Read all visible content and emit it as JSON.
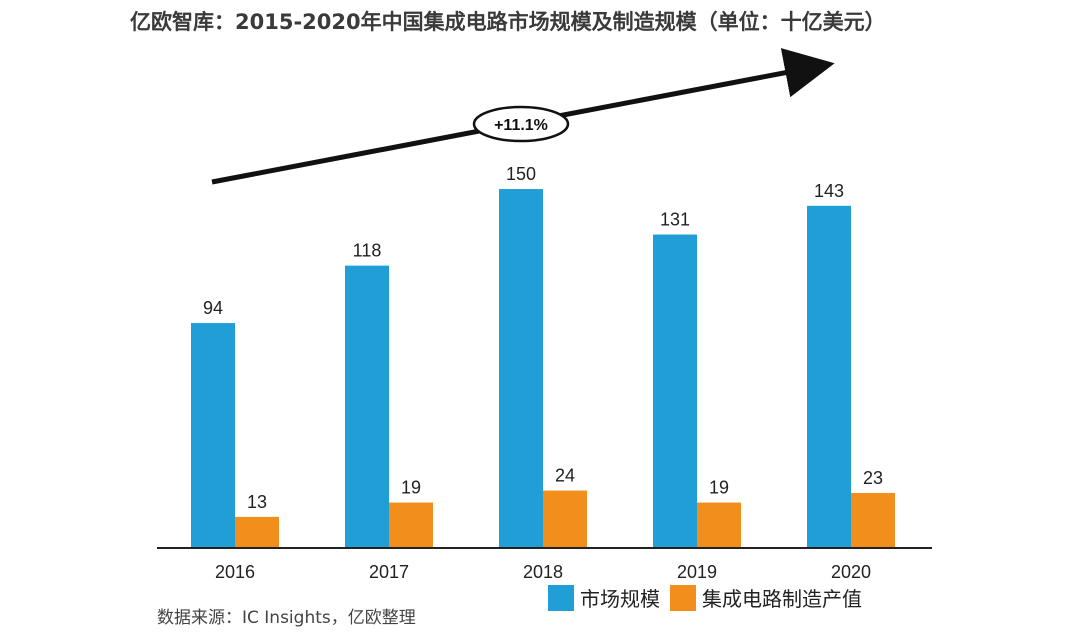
{
  "source": "数据来源：IC Insights，亿欧整理",
  "growth_label": "+11.1%",
  "colors": {
    "market": "#1f9fd6",
    "manufacturing": "#f28e1c",
    "axis": "#222222",
    "arrow": "#111111"
  },
  "chart_data": {
    "type": "bar",
    "title": "亿欧智库：2015-2020年中国集成电路市场规模及制造规模（单位：十亿美元）",
    "xlabel": "",
    "ylabel": "",
    "categories": [
      "2016",
      "2017",
      "2018",
      "2019",
      "2020"
    ],
    "series": [
      {
        "name": "市场规模",
        "values": [
          94,
          118,
          150,
          131,
          143
        ]
      },
      {
        "name": "集成电路制造产值",
        "values": [
          13,
          19,
          24,
          19,
          23
        ]
      }
    ],
    "ylim": [
      0,
      150
    ],
    "grid": false,
    "legend": "bottom-right"
  }
}
